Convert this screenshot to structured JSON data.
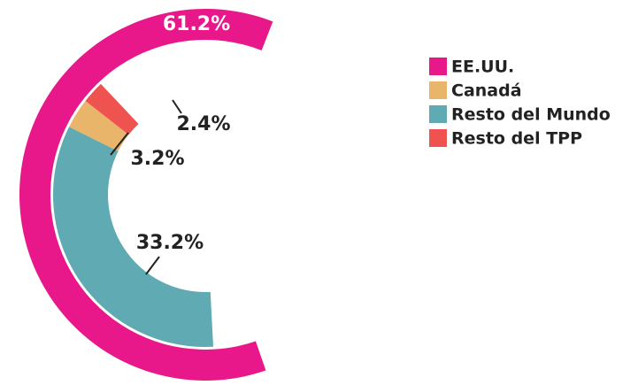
{
  "chart_data": {
    "type": "nested-donut",
    "categories": [
      "EE.UU.",
      "Canadá",
      "Resto del Mundo",
      "Resto del TPP"
    ],
    "values": [
      61.2,
      3.2,
      33.2,
      2.4
    ],
    "value_labels": [
      "61.2%",
      "3.2%",
      "33.2%",
      "2.4%"
    ],
    "colors": [
      "#e8178a",
      "#e9b56b",
      "#5faab3",
      "#ef5350"
    ],
    "legend": "right"
  }
}
